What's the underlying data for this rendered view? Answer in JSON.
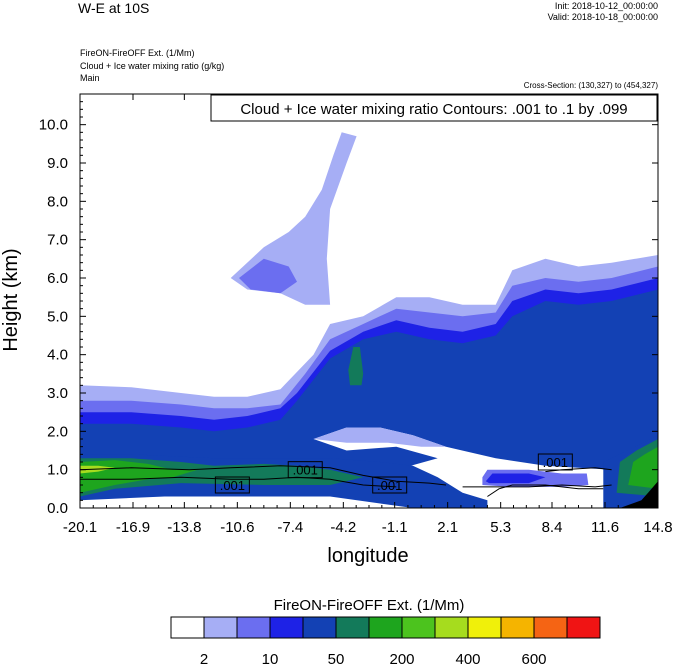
{
  "header": {
    "title": "W-E at 10S",
    "init": "Init: 2018-10-12_00:00:00",
    "valid": "Valid: 2018-10-18_00:00:00",
    "field1": "FireON-FireOFF Ext.   (1/Mm)",
    "field2": "Cloud + Ice water mixing ratio   (g/kg)",
    "field3": "Main",
    "cross_section": "Cross-Section: (130,327) to (454,327)"
  },
  "colors": {
    "levels": [
      "#ffffff",
      "#a6aef5",
      "#6b6ef0",
      "#1e22e6",
      "#1341b4",
      "#137a5a",
      "#1ea51e",
      "#4cc31e",
      "#a6dc1e",
      "#f0f00a",
      "#f5b400",
      "#f56414",
      "#f01414"
    ]
  },
  "chart_data": {
    "type": "contour",
    "annotation": "Cloud + Ice water mixing ratio Contours: .001 to .1 by .099",
    "xlabel": "longitude",
    "ylabel": "Height (km)",
    "xlim": [
      -20.1,
      14.8
    ],
    "ylim": [
      0,
      10.8
    ],
    "x_ticks": [
      "-20.1",
      "-16.9",
      "-13.8",
      "-10.6",
      "-7.4",
      "-4.2",
      "-1.1",
      "2.1",
      "5.3",
      "8.4",
      "11.6",
      "14.8"
    ],
    "y_ticks": [
      "0.0",
      "1.0",
      "2.0",
      "3.0",
      "4.0",
      "5.0",
      "6.0",
      "7.0",
      "8.0",
      "9.0",
      "10.0"
    ],
    "contour_labels": [
      {
        "text": ".001",
        "x": -10.9,
        "y": 0.6
      },
      {
        "text": ".001",
        "x": -6.5,
        "y": 1.0
      },
      {
        "text": ".001",
        "x": -1.4,
        "y": 0.6
      },
      {
        "text": ".001",
        "x": 8.6,
        "y": 1.2
      }
    ],
    "colorbar": {
      "title": "FireON-FireOFF Ext.  (1/Mm)",
      "tick_labels": [
        "2",
        "10",
        "50",
        "200",
        "400",
        "600"
      ]
    },
    "regions": [
      {
        "level": 1,
        "pts": [
          [
            -20.1,
            0
          ],
          [
            -20.1,
            3.2
          ],
          [
            -17,
            3.15
          ],
          [
            -14,
            3.0
          ],
          [
            -12,
            2.9
          ],
          [
            -10,
            2.9
          ],
          [
            -8,
            3.1
          ],
          [
            -6,
            4.0
          ],
          [
            -5,
            4.8
          ],
          [
            -3,
            5.0
          ],
          [
            -1,
            5.5
          ],
          [
            1,
            5.5
          ],
          [
            3,
            5.3
          ],
          [
            5,
            5.3
          ],
          [
            6,
            6.2
          ],
          [
            8,
            6.5
          ],
          [
            10,
            6.3
          ],
          [
            12,
            6.4
          ],
          [
            14.8,
            6.6
          ],
          [
            14.8,
            0
          ]
        ]
      },
      {
        "level": 1,
        "pts": [
          [
            -11,
            6.0
          ],
          [
            -9,
            6.8
          ],
          [
            -7.5,
            7.2
          ],
          [
            -6.5,
            7.6
          ],
          [
            -5.5,
            8.3
          ],
          [
            -4.8,
            9.2
          ],
          [
            -4.3,
            9.8
          ],
          [
            -3.4,
            9.7
          ],
          [
            -4,
            9.0
          ],
          [
            -5,
            7.8
          ],
          [
            -5.2,
            6.5
          ],
          [
            -5,
            5.3
          ],
          [
            -6.5,
            5.3
          ],
          [
            -8,
            5.6
          ],
          [
            -10,
            5.7
          ]
        ]
      },
      {
        "level": 2,
        "pts": [
          [
            -20.1,
            0
          ],
          [
            -20.1,
            2.8
          ],
          [
            -17,
            2.8
          ],
          [
            -14,
            2.7
          ],
          [
            -12,
            2.6
          ],
          [
            -10,
            2.6
          ],
          [
            -8,
            2.7
          ],
          [
            -6.5,
            3.5
          ],
          [
            -5,
            4.4
          ],
          [
            -3,
            4.8
          ],
          [
            -1,
            5.2
          ],
          [
            1,
            5.1
          ],
          [
            3,
            5.0
          ],
          [
            5,
            5.1
          ],
          [
            6,
            5.8
          ],
          [
            8,
            6.0
          ],
          [
            10,
            5.9
          ],
          [
            12,
            6.0
          ],
          [
            14.8,
            6.3
          ],
          [
            14.8,
            0
          ]
        ]
      },
      {
        "level": 2,
        "pts": [
          [
            -10.5,
            6.0
          ],
          [
            -9,
            6.5
          ],
          [
            -7.5,
            6.3
          ],
          [
            -7,
            5.9
          ],
          [
            -8,
            5.6
          ],
          [
            -9.8,
            5.7
          ]
        ]
      },
      {
        "level": 3,
        "pts": [
          [
            -20.1,
            0
          ],
          [
            -20.1,
            2.5
          ],
          [
            -17,
            2.5
          ],
          [
            -14,
            2.4
          ],
          [
            -12,
            2.3
          ],
          [
            -10,
            2.4
          ],
          [
            -8,
            2.6
          ],
          [
            -7,
            3.0
          ],
          [
            -5,
            4.1
          ],
          [
            -3,
            4.6
          ],
          [
            -1,
            4.9
          ],
          [
            1,
            4.7
          ],
          [
            3,
            4.6
          ],
          [
            5,
            4.8
          ],
          [
            6,
            5.4
          ],
          [
            8,
            5.7
          ],
          [
            10,
            5.6
          ],
          [
            12,
            5.7
          ],
          [
            14.8,
            6.0
          ],
          [
            14.8,
            0
          ]
        ]
      },
      {
        "level": 4,
        "pts": [
          [
            -20.1,
            0
          ],
          [
            -20.1,
            2.2
          ],
          [
            -17,
            2.2
          ],
          [
            -14,
            2.1
          ],
          [
            -12,
            2.0
          ],
          [
            -10,
            2.1
          ],
          [
            -8,
            2.3
          ],
          [
            -7,
            2.8
          ],
          [
            -5,
            3.9
          ],
          [
            -3,
            4.4
          ],
          [
            -1,
            4.6
          ],
          [
            1,
            4.4
          ],
          [
            3,
            4.3
          ],
          [
            5,
            4.5
          ],
          [
            6,
            5.0
          ],
          [
            8,
            5.4
          ],
          [
            10,
            5.3
          ],
          [
            12,
            5.4
          ],
          [
            14.8,
            5.7
          ],
          [
            14.8,
            0
          ]
        ]
      },
      {
        "level": 0,
        "pts": [
          [
            -6,
            1.8
          ],
          [
            -4,
            2.1
          ],
          [
            -2,
            2.1
          ],
          [
            0,
            1.9
          ],
          [
            2,
            1.6
          ],
          [
            5,
            1.3
          ],
          [
            8,
            1.1
          ],
          [
            12,
            1.0
          ],
          [
            14.8,
            1.0
          ],
          [
            14.8,
            0
          ],
          [
            -20.1,
            0
          ],
          [
            -20.1,
            0.4
          ],
          [
            -15,
            0.4
          ],
          [
            -8,
            0.5
          ],
          [
            -4,
            0.8
          ],
          [
            -1,
            1.0
          ],
          [
            1.5,
            1.3
          ],
          [
            -1,
            1.6
          ],
          [
            -4,
            1.5
          ]
        ]
      },
      {
        "level": 1,
        "pts": [
          [
            -6,
            1.8
          ],
          [
            -4,
            2.1
          ],
          [
            -2,
            2.1
          ],
          [
            0,
            1.9
          ],
          [
            2,
            1.6
          ],
          [
            0.5,
            1.6
          ],
          [
            -1.5,
            1.7
          ],
          [
            -4,
            1.7
          ]
        ]
      },
      {
        "level": 5,
        "pts": [
          [
            -3.6,
            4.2
          ],
          [
            -3.2,
            4.2
          ],
          [
            -3,
            3.5
          ],
          [
            -3.1,
            3.2
          ],
          [
            -3.8,
            3.2
          ],
          [
            -3.9,
            3.6
          ]
        ]
      },
      {
        "level": 4,
        "pts": [
          [
            -20.1,
            0
          ],
          [
            -20.1,
            1.4
          ],
          [
            -17,
            1.4
          ],
          [
            -12,
            1.3
          ],
          [
            -8,
            1.3
          ],
          [
            -5,
            1.3
          ],
          [
            -2,
            1.2
          ],
          [
            0,
            1.1
          ],
          [
            1.5,
            0.8
          ],
          [
            3,
            0.4
          ],
          [
            4.5,
            0.2
          ],
          [
            4.5,
            0
          ],
          [
            0,
            0
          ],
          [
            -5,
            0.3
          ],
          [
            -10,
            0.3
          ],
          [
            -15,
            0.3
          ],
          [
            -20.1,
            0.2
          ]
        ]
      },
      {
        "level": 5,
        "pts": [
          [
            -20.1,
            0.3
          ],
          [
            -20.1,
            1.3
          ],
          [
            -17,
            1.3
          ],
          [
            -14,
            1.2
          ],
          [
            -12,
            1.1
          ],
          [
            -9,
            1.15
          ],
          [
            -7,
            1.1
          ],
          [
            -5,
            1.0
          ],
          [
            -3,
            0.8
          ],
          [
            -5,
            0.6
          ],
          [
            -9,
            0.6
          ],
          [
            -14,
            0.65
          ],
          [
            -18,
            0.5
          ]
        ]
      },
      {
        "level": 6,
        "pts": [
          [
            -20.1,
            0.4
          ],
          [
            -20.1,
            1.2
          ],
          [
            -18,
            1.25
          ],
          [
            -16,
            1.15
          ],
          [
            -14.5,
            1.0
          ],
          [
            -13,
            1.0
          ],
          [
            -14.5,
            0.8
          ],
          [
            -16,
            0.75
          ],
          [
            -18,
            0.6
          ]
        ]
      },
      {
        "level": 8,
        "pts": [
          [
            -20.1,
            0.9
          ],
          [
            -20.1,
            1.1
          ],
          [
            -19,
            1.1
          ],
          [
            -18,
            1.05
          ],
          [
            -19,
            0.95
          ]
        ]
      },
      {
        "level": 2,
        "pts": [
          [
            4.2,
            0.8
          ],
          [
            4.5,
            1.0
          ],
          [
            7,
            1.0
          ],
          [
            9,
            0.9
          ],
          [
            10.5,
            0.9
          ],
          [
            10.6,
            0.6
          ],
          [
            9,
            0.55
          ],
          [
            6,
            0.55
          ],
          [
            4.2,
            0.6
          ]
        ]
      },
      {
        "level": 3,
        "pts": [
          [
            4.4,
            0.7
          ],
          [
            4.8,
            0.9
          ],
          [
            7,
            0.9
          ],
          [
            8,
            0.8
          ],
          [
            7,
            0.65
          ],
          [
            4.6,
            0.65
          ]
        ]
      },
      {
        "level": 4,
        "pts": [
          [
            11.5,
            0
          ],
          [
            11.5,
            1.2
          ],
          [
            12.5,
            1.4
          ],
          [
            14.8,
            1.9
          ],
          [
            14.8,
            0
          ]
        ]
      },
      {
        "level": 5,
        "pts": [
          [
            12.3,
            0.4
          ],
          [
            12.5,
            1.2
          ],
          [
            13.5,
            1.5
          ],
          [
            14.8,
            1.8
          ],
          [
            14.8,
            0.3
          ]
        ]
      },
      {
        "level": 6,
        "pts": [
          [
            13,
            0.6
          ],
          [
            13.3,
            1.2
          ],
          [
            14,
            1.4
          ],
          [
            14.8,
            1.6
          ],
          [
            14.8,
            0.5
          ]
        ]
      }
    ],
    "contours": [
      [
        [
          -20.1,
          1.0
        ],
        [
          -17,
          1.05
        ],
        [
          -13.5,
          1.0
        ],
        [
          -11,
          1.05
        ],
        [
          -8,
          1.1
        ],
        [
          -5,
          1.05
        ],
        [
          -3,
          0.85
        ],
        [
          -1,
          0.7
        ],
        [
          1,
          0.65
        ],
        [
          2,
          0.6
        ]
      ],
      [
        [
          -20.1,
          0.75
        ],
        [
          -17,
          0.75
        ],
        [
          -14,
          0.8
        ],
        [
          -11,
          0.75
        ],
        [
          -9,
          0.75
        ],
        [
          -7,
          0.8
        ],
        [
          -5,
          0.75
        ],
        [
          -3,
          0.6
        ],
        [
          -1,
          0.55
        ]
      ],
      [
        [
          3,
          0.55
        ],
        [
          5,
          0.55
        ],
        [
          7,
          0.55
        ],
        [
          9,
          0.6
        ],
        [
          11,
          0.55
        ],
        [
          12,
          0.6
        ]
      ],
      [
        [
          4.5,
          0.3
        ],
        [
          5.2,
          0.5
        ],
        [
          6,
          0.6
        ],
        [
          8,
          0.6
        ],
        [
          10,
          0.5
        ],
        [
          11.5,
          0.5
        ]
      ],
      [
        [
          8,
          0.95
        ],
        [
          9,
          1.0
        ],
        [
          11,
          1.05
        ],
        [
          12,
          1.0
        ]
      ]
    ],
    "terrain": [
      [
        12.5,
        0
      ],
      [
        13.8,
        0.2
      ],
      [
        14.2,
        0.4
      ],
      [
        14.8,
        0.7
      ],
      [
        14.8,
        0
      ]
    ]
  }
}
